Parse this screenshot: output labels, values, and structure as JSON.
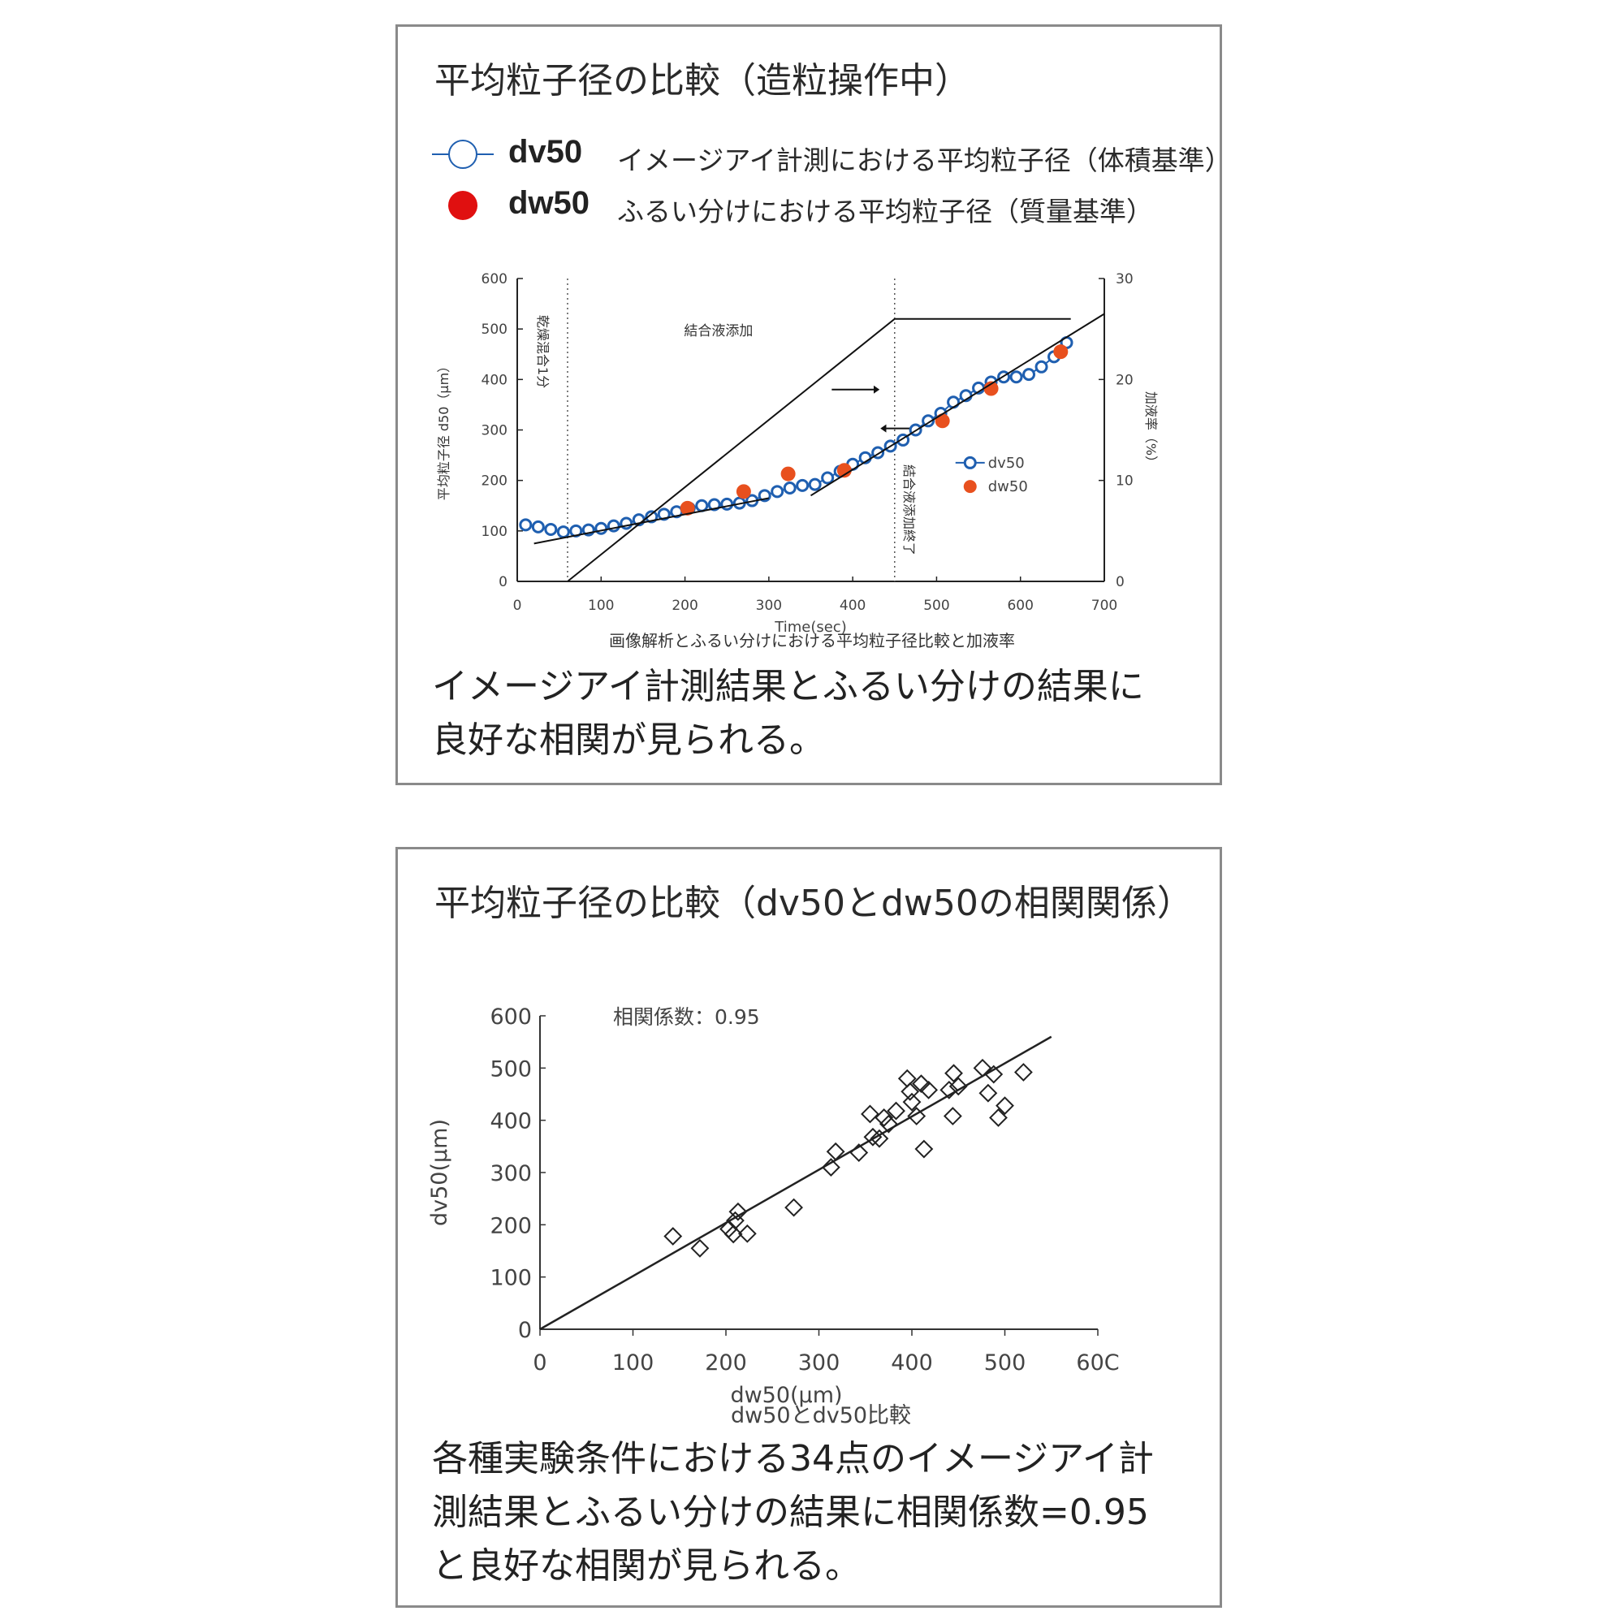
{
  "panel1": {
    "title": "平均粒子径の比較（造粒操作中）",
    "legend": [
      {
        "name": "dv50",
        "desc": "イメージアイ計測における平均粒子径（体積基準）",
        "symbol": "open-circle-line",
        "color": "#1f5fb0"
      },
      {
        "name": "dw50",
        "desc": "ふるい分けにおける平均粒子径（質量基準）",
        "symbol": "filled-circle",
        "color": "#e01010"
      }
    ],
    "caption": "画像解析とふるい分けにおける平均粒子径比較と加液率",
    "summary_lines": [
      "イメージアイ計測結果とふるい分けの結果に",
      "良好な相関が見られる。"
    ]
  },
  "panel2": {
    "title": "平均粒子径の比較（dv50とdw50の相関関係）",
    "caption": "dw50とdv50比較",
    "summary_lines": [
      "各種実験条件における34点のイメージアイ計",
      "測結果とふるい分けの結果に相関係数=0.95",
      "と良好な相関が見られる。"
    ]
  },
  "chart_data": [
    {
      "type": "line",
      "xlabel": "Time(sec)",
      "ylabel": "平均粒子径 d50（μm）",
      "y2label": "加液率（%）",
      "xlim": [
        0,
        700
      ],
      "ylim": [
        0,
        600
      ],
      "y2lim": [
        0,
        30
      ],
      "xticks": [
        "0",
        "100",
        "200",
        "300",
        "400",
        "500",
        "600",
        "700"
      ],
      "yticks": [
        "0",
        "100",
        "200",
        "300",
        "400",
        "500",
        "600"
      ],
      "y2ticks": [
        "0",
        "10",
        "20",
        "30"
      ],
      "annotations": [
        "乾燥混合1分",
        "結合液添加",
        "結合液添加終了"
      ],
      "vlines": [
        60,
        450
      ],
      "inner_legend": [
        "dv50",
        "dw50"
      ],
      "series": [
        {
          "name": "dv50",
          "marker": "open-circle",
          "color": "#1f5fb0",
          "x": [
            10,
            25,
            40,
            55,
            70,
            85,
            100,
            115,
            130,
            145,
            160,
            175,
            190,
            205,
            220,
            235,
            250,
            265,
            280,
            295,
            310,
            325,
            340,
            355,
            370,
            385,
            400,
            415,
            430,
            445,
            460,
            475,
            490,
            505,
            520,
            535,
            550,
            565,
            580,
            595,
            610,
            625,
            640,
            655
          ],
          "y": [
            112,
            108,
            103,
            98,
            100,
            102,
            105,
            110,
            115,
            122,
            128,
            133,
            138,
            145,
            150,
            152,
            153,
            155,
            160,
            170,
            178,
            185,
            190,
            192,
            205,
            218,
            232,
            245,
            255,
            268,
            280,
            300,
            318,
            333,
            355,
            368,
            383,
            395,
            405,
            405,
            410,
            425,
            445,
            473
          ]
        },
        {
          "name": "dw50",
          "marker": "filled-circle",
          "color": "#e8501e",
          "x": [
            203,
            270,
            323,
            390,
            507,
            565,
            648
          ],
          "y": [
            145,
            178,
            213,
            220,
            318,
            382,
            455
          ]
        },
        {
          "name": "加液率",
          "axis": "y2",
          "marker": "none",
          "color": "#111111",
          "x": [
            60,
            450,
            660
          ],
          "y": [
            0,
            26,
            26
          ]
        },
        {
          "name": "trend-early",
          "marker": "none",
          "color": "#111111",
          "x": [
            20,
            300
          ],
          "y": [
            75,
            165
          ]
        },
        {
          "name": "trend-late",
          "marker": "none",
          "color": "#111111",
          "x": [
            350,
            700
          ],
          "y": [
            170,
            530
          ]
        }
      ]
    },
    {
      "type": "scatter",
      "xlabel": "dw50(μm)",
      "ylabel": "dv50(μm)",
      "xlim": [
        0,
        600
      ],
      "ylim": [
        0,
        600
      ],
      "xticks": [
        "0",
        "100",
        "200",
        "300",
        "400",
        "500",
        "60C"
      ],
      "yticks": [
        "0",
        "100",
        "200",
        "300",
        "400",
        "500",
        "600"
      ],
      "annotation": "相関係数：0.95",
      "regression": {
        "x": [
          0,
          550
        ],
        "y": [
          0,
          560
        ]
      },
      "series": [
        {
          "name": "",
          "marker": "open-diamond",
          "color": "#222222",
          "x": [
            143,
            172,
            203,
            208,
            210,
            213,
            223,
            273,
            313,
            318,
            343,
            355,
            358,
            365,
            370,
            375,
            383,
            395,
            398,
            400,
            405,
            410,
            413,
            418,
            440,
            444,
            445,
            450,
            476,
            482,
            488,
            500,
            520,
            493
          ],
          "y": [
            178,
            155,
            192,
            182,
            208,
            225,
            183,
            233,
            310,
            340,
            338,
            412,
            368,
            365,
            405,
            393,
            418,
            480,
            455,
            435,
            408,
            470,
            345,
            458,
            458,
            408,
            490,
            465,
            500,
            452,
            488,
            428,
            492,
            405
          ]
        }
      ]
    }
  ]
}
